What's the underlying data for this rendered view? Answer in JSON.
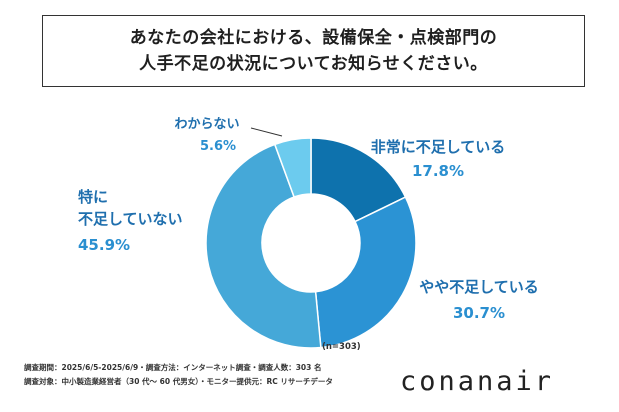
{
  "title": {
    "line1": "あなたの会社における、設備保全・点検部門の",
    "line2": "人手不足の状況についてお知らせください。"
  },
  "chart_data": {
    "type": "donut",
    "sample_note": "(n=303)",
    "slices": [
      {
        "label": "非常に不足している",
        "value": 17.8,
        "value_label": "17.8%",
        "color": "#0e72ad"
      },
      {
        "label": "やや不足している",
        "value": 30.7,
        "value_label": "30.7%",
        "color": "#2b93d4"
      },
      {
        "label_lines": [
          "特に",
          "不足していない"
        ],
        "value": 45.9,
        "value_label": "45.9%",
        "color": "#45a8d8"
      },
      {
        "label": "わからない",
        "value": 5.6,
        "value_label": "5.6%",
        "color": "#6ccbee"
      }
    ]
  },
  "footer": {
    "line1": "調査期間：2025/6/5-2025/6/9・調査方法：インターネット調査・調査人数：303 名",
    "line2": "調査対象：中小製造業経営者（30 代～ 60 代男女）・モニター提供元：RC リサーチデータ"
  },
  "brand": "conanair",
  "colors": {
    "label_text": "#1f6fae",
    "value_text": "#2a8fd0"
  }
}
